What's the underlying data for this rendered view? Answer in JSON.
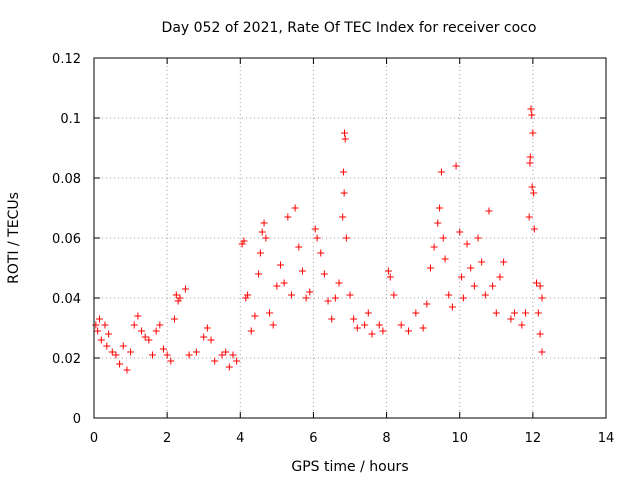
{
  "chart_data": {
    "type": "scatter",
    "title": "Day 052 of 2021, Rate Of TEC Index for receiver coco",
    "xlabel": "GPS time / hours",
    "ylabel": "ROTI / TECUs",
    "xlim": [
      0,
      14
    ],
    "ylim": [
      0,
      0.12
    ],
    "x_ticks": [
      0,
      2,
      4,
      6,
      8,
      10,
      12,
      14
    ],
    "x_tick_labels": [
      "0",
      "2",
      "4",
      "6",
      "8",
      "10",
      "12",
      "14"
    ],
    "y_ticks": [
      0,
      0.02,
      0.04,
      0.06,
      0.08,
      0.1,
      0.12
    ],
    "y_tick_labels": [
      "0",
      "0.02",
      "0.04",
      "0.06",
      "0.08",
      "0.1",
      "0.12"
    ],
    "grid": true,
    "marker": "+",
    "color": "#ff0000",
    "series": [
      {
        "name": "ROTI",
        "points": [
          [
            0.05,
            0.031
          ],
          [
            0.1,
            0.029
          ],
          [
            0.15,
            0.033
          ],
          [
            0.2,
            0.026
          ],
          [
            0.3,
            0.031
          ],
          [
            0.35,
            0.024
          ],
          [
            0.4,
            0.028
          ],
          [
            0.5,
            0.022
          ],
          [
            0.6,
            0.021
          ],
          [
            0.7,
            0.018
          ],
          [
            0.8,
            0.024
          ],
          [
            0.9,
            0.016
          ],
          [
            1.0,
            0.022
          ],
          [
            1.1,
            0.031
          ],
          [
            1.2,
            0.034
          ],
          [
            1.3,
            0.029
          ],
          [
            1.4,
            0.027
          ],
          [
            1.5,
            0.026
          ],
          [
            1.6,
            0.021
          ],
          [
            1.7,
            0.029
          ],
          [
            1.8,
            0.031
          ],
          [
            1.9,
            0.023
          ],
          [
            2.0,
            0.021
          ],
          [
            2.1,
            0.019
          ],
          [
            2.2,
            0.033
          ],
          [
            2.25,
            0.041
          ],
          [
            2.3,
            0.039
          ],
          [
            2.35,
            0.04
          ],
          [
            2.5,
            0.043
          ],
          [
            2.6,
            0.021
          ],
          [
            2.8,
            0.022
          ],
          [
            3.0,
            0.027
          ],
          [
            3.1,
            0.03
          ],
          [
            3.2,
            0.026
          ],
          [
            3.3,
            0.019
          ],
          [
            3.5,
            0.021
          ],
          [
            3.6,
            0.022
          ],
          [
            3.7,
            0.017
          ],
          [
            3.8,
            0.021
          ],
          [
            3.9,
            0.019
          ],
          [
            4.05,
            0.058
          ],
          [
            4.1,
            0.059
          ],
          [
            4.15,
            0.04
          ],
          [
            4.2,
            0.041
          ],
          [
            4.3,
            0.029
          ],
          [
            4.4,
            0.034
          ],
          [
            4.5,
            0.048
          ],
          [
            4.55,
            0.055
          ],
          [
            4.6,
            0.062
          ],
          [
            4.65,
            0.065
          ],
          [
            4.7,
            0.06
          ],
          [
            4.8,
            0.035
          ],
          [
            4.9,
            0.031
          ],
          [
            5.0,
            0.044
          ],
          [
            5.1,
            0.051
          ],
          [
            5.2,
            0.045
          ],
          [
            5.3,
            0.067
          ],
          [
            5.4,
            0.041
          ],
          [
            5.5,
            0.07
          ],
          [
            5.6,
            0.057
          ],
          [
            5.7,
            0.049
          ],
          [
            5.8,
            0.04
          ],
          [
            5.9,
            0.042
          ],
          [
            6.05,
            0.063
          ],
          [
            6.1,
            0.06
          ],
          [
            6.2,
            0.055
          ],
          [
            6.3,
            0.048
          ],
          [
            6.4,
            0.039
          ],
          [
            6.5,
            0.033
          ],
          [
            6.6,
            0.04
          ],
          [
            6.7,
            0.045
          ],
          [
            6.8,
            0.067
          ],
          [
            6.85,
            0.095
          ],
          [
            6.87,
            0.093
          ],
          [
            6.82,
            0.082
          ],
          [
            6.84,
            0.075
          ],
          [
            6.9,
            0.06
          ],
          [
            7.0,
            0.041
          ],
          [
            7.1,
            0.033
          ],
          [
            7.2,
            0.03
          ],
          [
            7.4,
            0.031
          ],
          [
            7.5,
            0.035
          ],
          [
            7.6,
            0.028
          ],
          [
            7.8,
            0.031
          ],
          [
            7.9,
            0.029
          ],
          [
            8.05,
            0.049
          ],
          [
            8.1,
            0.047
          ],
          [
            8.2,
            0.041
          ],
          [
            8.4,
            0.031
          ],
          [
            8.6,
            0.029
          ],
          [
            8.8,
            0.035
          ],
          [
            9.0,
            0.03
          ],
          [
            9.1,
            0.038
          ],
          [
            9.2,
            0.05
          ],
          [
            9.3,
            0.057
          ],
          [
            9.4,
            0.065
          ],
          [
            9.45,
            0.07
          ],
          [
            9.5,
            0.082
          ],
          [
            9.55,
            0.06
          ],
          [
            9.6,
            0.053
          ],
          [
            9.7,
            0.041
          ],
          [
            9.8,
            0.037
          ],
          [
            9.9,
            0.084
          ],
          [
            10.0,
            0.062
          ],
          [
            10.05,
            0.047
          ],
          [
            10.1,
            0.04
          ],
          [
            10.2,
            0.058
          ],
          [
            10.3,
            0.05
          ],
          [
            10.4,
            0.044
          ],
          [
            10.5,
            0.06
          ],
          [
            10.6,
            0.052
          ],
          [
            10.7,
            0.041
          ],
          [
            10.8,
            0.069
          ],
          [
            10.9,
            0.044
          ],
          [
            11.0,
            0.035
          ],
          [
            11.1,
            0.047
          ],
          [
            11.2,
            0.052
          ],
          [
            11.4,
            0.033
          ],
          [
            11.5,
            0.035
          ],
          [
            11.7,
            0.031
          ],
          [
            11.8,
            0.035
          ],
          [
            11.9,
            0.067
          ],
          [
            11.95,
            0.103
          ],
          [
            11.97,
            0.101
          ],
          [
            12.0,
            0.095
          ],
          [
            11.93,
            0.087
          ],
          [
            11.92,
            0.085
          ],
          [
            11.98,
            0.077
          ],
          [
            12.02,
            0.075
          ],
          [
            12.04,
            0.063
          ],
          [
            12.1,
            0.045
          ],
          [
            12.2,
            0.044
          ],
          [
            12.25,
            0.04
          ],
          [
            12.15,
            0.035
          ],
          [
            12.2,
            0.028
          ],
          [
            12.25,
            0.022
          ]
        ]
      }
    ]
  }
}
